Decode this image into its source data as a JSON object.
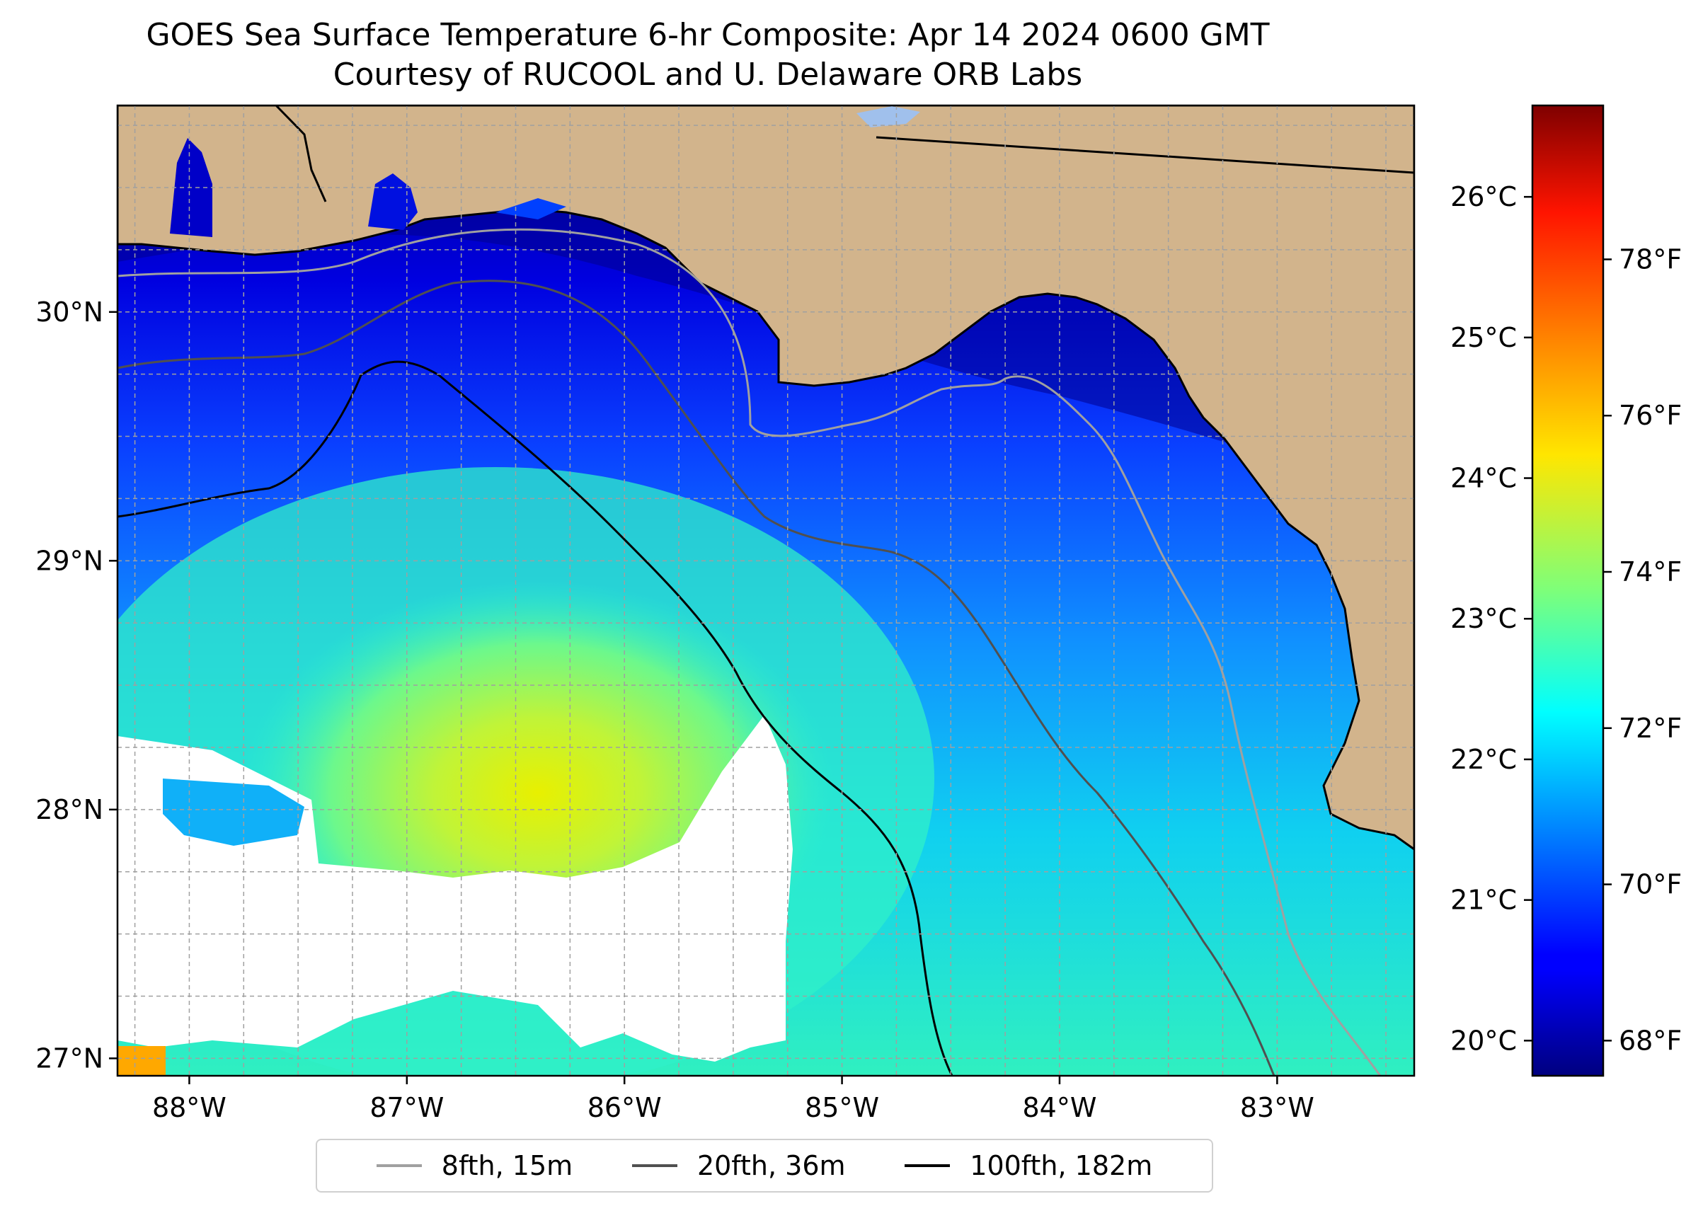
{
  "title": {
    "line1": "GOES Sea Surface Temperature 6-hr Composite: Apr 14 2024 0600 GMT",
    "line2": "Courtesy of RUCOOL and U. Delaware ORB Labs"
  },
  "map": {
    "extent": {
      "lon": [
        -88.33,
        -82.37
      ],
      "lat": [
        26.93,
        30.83
      ]
    },
    "lon_ticks": [
      {
        "value": -88,
        "label": "88°W"
      },
      {
        "value": -87,
        "label": "87°W"
      },
      {
        "value": -86,
        "label": "86°W"
      },
      {
        "value": -85,
        "label": "85°W"
      },
      {
        "value": -84,
        "label": "84°W"
      },
      {
        "value": -83,
        "label": "83°W"
      }
    ],
    "lat_ticks": [
      {
        "value": 30,
        "label": "30°N"
      },
      {
        "value": 29,
        "label": "29°N"
      },
      {
        "value": 28,
        "label": "28°N"
      },
      {
        "value": 27,
        "label": "27°N"
      }
    ],
    "gridlines": true,
    "land_color": "#d2b48c",
    "no_data_color": "#ffffff"
  },
  "colorbar": {
    "range_c": [
      19.75,
      26.65
    ],
    "celsius_ticks": [
      {
        "value": 20,
        "label": "20°C"
      },
      {
        "value": 21,
        "label": "21°C"
      },
      {
        "value": 22,
        "label": "22°C"
      },
      {
        "value": 23,
        "label": "23°C"
      },
      {
        "value": 24,
        "label": "24°C"
      },
      {
        "value": 25,
        "label": "25°C"
      },
      {
        "value": 26,
        "label": "26°C"
      }
    ],
    "fahrenheit_ticks": [
      {
        "value": 68,
        "label": "68°F"
      },
      {
        "value": 70,
        "label": "70°F"
      },
      {
        "value": 72,
        "label": "72°F"
      },
      {
        "value": 74,
        "label": "74°F"
      },
      {
        "value": 76,
        "label": "76°F"
      },
      {
        "value": 78,
        "label": "78°F"
      }
    ],
    "colormap": "jet"
  },
  "legend": {
    "placement": "bottom-center",
    "items": [
      {
        "label": "8fth, 15m",
        "color": "#a0a0a0"
      },
      {
        "label": "20fth, 36m",
        "color": "#505050"
      },
      {
        "label": "100fth, 182m",
        "color": "#000000"
      }
    ]
  }
}
